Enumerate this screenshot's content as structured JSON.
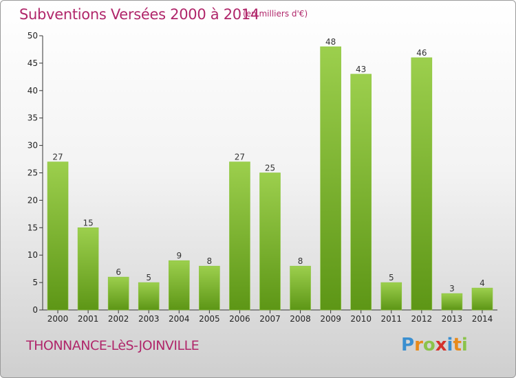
{
  "title": "Subventions Versées 2000 à 2014",
  "subtitle": "(en milliers d'€)",
  "region": "THONNANCE-LèS-JOINVILLE",
  "logo": "Proxiti",
  "colors": {
    "title": "#b0266a",
    "bar_top": "#9ccf4d",
    "bar_bottom": "#5d9616"
  },
  "chart_data": {
    "type": "bar",
    "title": "Subventions Versées 2000 à 2014",
    "subtitle": "(en milliers d'€)",
    "categories": [
      "2000",
      "2001",
      "2002",
      "2003",
      "2004",
      "2005",
      "2006",
      "2007",
      "2008",
      "2009",
      "2010",
      "2011",
      "2012",
      "2013",
      "2014"
    ],
    "values": [
      27,
      15,
      6,
      5,
      9,
      8,
      27,
      25,
      8,
      48,
      43,
      5,
      46,
      3,
      4
    ],
    "ylim": [
      0,
      50
    ],
    "yticks": [
      0,
      5,
      10,
      15,
      20,
      25,
      30,
      35,
      40,
      45,
      50
    ],
    "grid": false,
    "legend": "none"
  }
}
